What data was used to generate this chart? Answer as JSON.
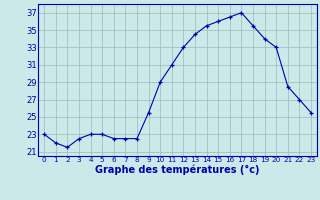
{
  "hours": [
    0,
    1,
    2,
    3,
    4,
    5,
    6,
    7,
    8,
    9,
    10,
    11,
    12,
    13,
    14,
    15,
    16,
    17,
    18,
    19,
    20,
    21,
    22,
    23
  ],
  "temps24": [
    23,
    22,
    21.5,
    22.5,
    23,
    23,
    22.5,
    22.5,
    22.5,
    25.5,
    29,
    31,
    33,
    34.5,
    35.5,
    36,
    36.5,
    37,
    35.5,
    34,
    33,
    28.5,
    27,
    25.5
  ],
  "ylim": [
    20.5,
    38
  ],
  "yticks": [
    21,
    23,
    25,
    27,
    29,
    31,
    33,
    35,
    37
  ],
  "xlabel": "Graphe des températures (°c)",
  "line_color": "#0000aa",
  "marker_color": "#0000aa",
  "bg_color": "#cce8e8",
  "grid_color": "#99bbbb",
  "axis_color": "#0000aa",
  "tick_fontsize": 6,
  "xlabel_fontsize": 7
}
